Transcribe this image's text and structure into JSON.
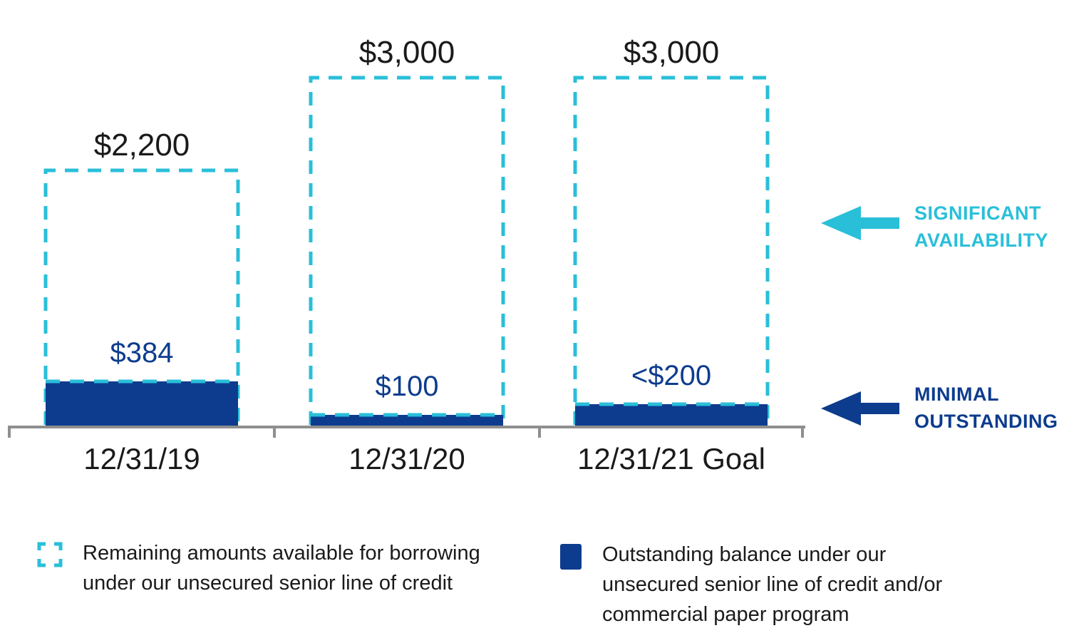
{
  "chart_data": {
    "type": "bar",
    "title": "",
    "unit": "$ millions",
    "categories": [
      "12/31/19",
      "12/31/20",
      "12/31/21 Goal"
    ],
    "bars": [
      {
        "category": "12/31/19",
        "total": 2200,
        "total_label": "$2,200",
        "outstanding": 384,
        "outstanding_label": "$384"
      },
      {
        "category": "12/31/20",
        "total": 3000,
        "total_label": "$3,000",
        "outstanding": 100,
        "outstanding_label": "$100"
      },
      {
        "category": "12/31/21 Goal",
        "total": 3000,
        "total_label": "$3,000",
        "outstanding": 190,
        "outstanding_label": "<$200"
      }
    ],
    "ylim": [
      0,
      3000
    ],
    "gridlines": false,
    "axes": "x-baseline-only",
    "legend_position": "bottom"
  },
  "annotations": {
    "significant_availability": {
      "lines": [
        "SIGNIFICANT",
        "AVAILABILITY"
      ],
      "icon": "left-arrow",
      "color": "#29BFD9"
    },
    "minimal_outstanding": {
      "lines": [
        "MINIMAL",
        "OUTSTANDING"
      ],
      "icon": "left-arrow",
      "color": "#0D3C8E"
    }
  },
  "legend": {
    "available": {
      "swatch": "dashed-cyan-box",
      "lines": [
        "Remaining amounts available for borrowing",
        "under our unsecured senior line of credit"
      ]
    },
    "outstanding": {
      "swatch": "solid-navy-box",
      "lines": [
        "Outstanding balance under our",
        "unsecured senior line of credit and/or",
        "commercial paper program"
      ]
    }
  },
  "colors": {
    "cyan": "#29BFD9",
    "navy": "#0D3C8E",
    "axis_gray": "#8F8F8F",
    "text_black": "#1A1A1A"
  }
}
